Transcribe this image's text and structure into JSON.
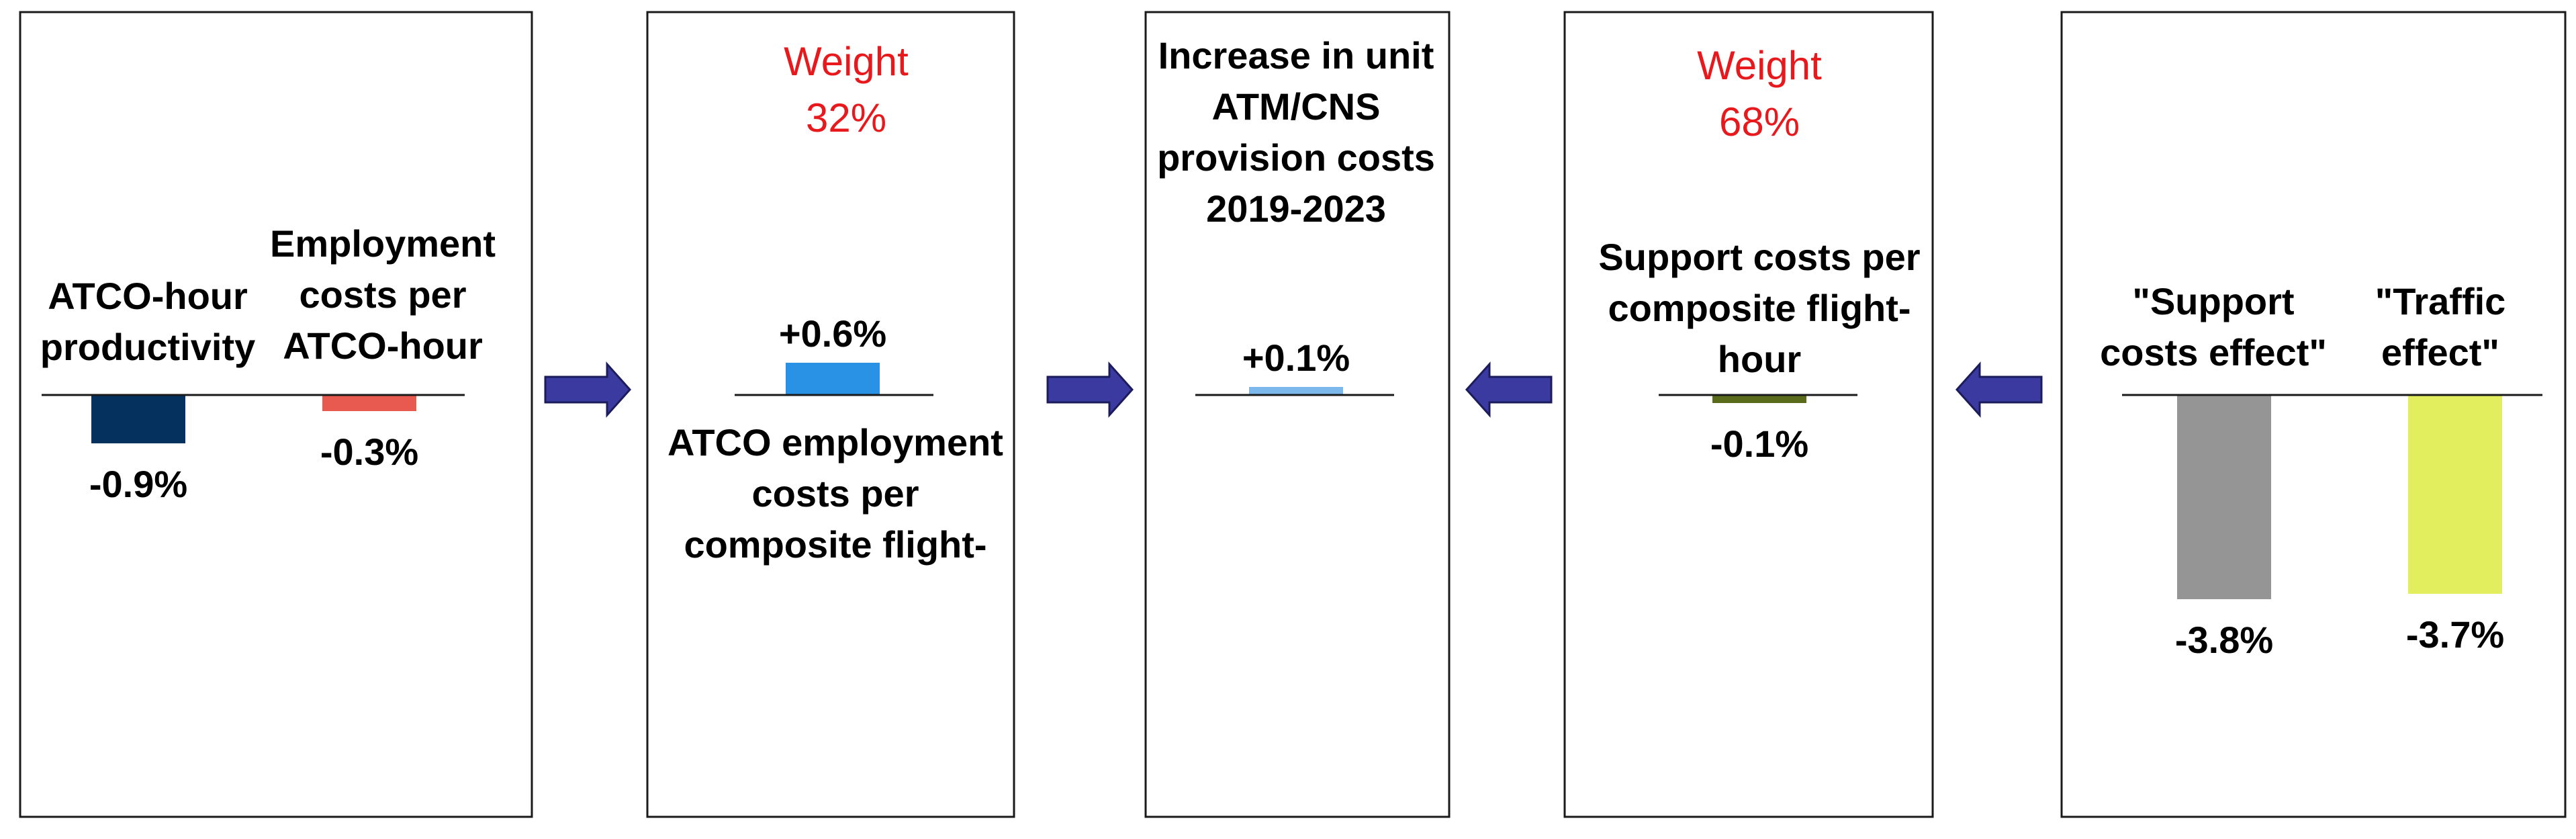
{
  "colors": {
    "weight_text": "#e8191c",
    "panel_border": "#1a1a1a",
    "arrow_fill": "#3a3aa0",
    "arrow_stroke": "#1c1c5c",
    "axis_line": "#1a1a1a"
  },
  "arrow_icon": "block-arrow-icon",
  "chart_data": [
    {
      "type": "bar",
      "categories": [
        "ATCO-hour productivity",
        "Employment costs per ATCO-hour"
      ],
      "values": [
        -0.9,
        -0.3
      ],
      "value_labels": [
        "-0.9%",
        "-0.3%"
      ],
      "colors": [
        "#04315e",
        "#e85a50"
      ],
      "category_lines": [
        [
          "ATCO-hour",
          "productivity"
        ],
        [
          "Employment",
          "costs per",
          "ATCO-hour"
        ]
      ]
    },
    {
      "type": "bar",
      "weight_title": "Weight",
      "weight_value": "32%",
      "categories": [
        "ATCO employment costs per composite flight-"
      ],
      "values": [
        0.6
      ],
      "value_labels": [
        "+0.6%"
      ],
      "colors": [
        "#2992e4"
      ],
      "category_lines": [
        [
          "ATCO employment",
          "costs per",
          "composite flight-"
        ]
      ]
    },
    {
      "type": "bar",
      "title_lines": [
        "Increase in unit",
        "ATM/CNS",
        "provision costs",
        "2019-2023"
      ],
      "categories": [
        ""
      ],
      "values": [
        0.1
      ],
      "value_labels": [
        "+0.1%"
      ],
      "colors": [
        "#7cb8ec"
      ]
    },
    {
      "type": "bar",
      "weight_title": "Weight",
      "weight_value": "68%",
      "categories": [
        "Support costs per composite flight-hour"
      ],
      "values": [
        -0.1
      ],
      "value_labels": [
        "-0.1%"
      ],
      "colors": [
        "#5a6b1c"
      ],
      "category_lines": [
        [
          "Support costs per",
          "composite flight-",
          "hour"
        ]
      ]
    },
    {
      "type": "bar",
      "categories": [
        "\"Support costs effect\"",
        "\"Traffic effect\""
      ],
      "values": [
        -3.8,
        -3.7
      ],
      "value_labels": [
        "-3.8%",
        "-3.7%"
      ],
      "colors": [
        "#959595",
        "#e2ee5e"
      ],
      "category_lines": [
        [
          "\"Support",
          "costs effect\""
        ],
        [
          "\"Traffic",
          "effect\""
        ]
      ]
    }
  ]
}
